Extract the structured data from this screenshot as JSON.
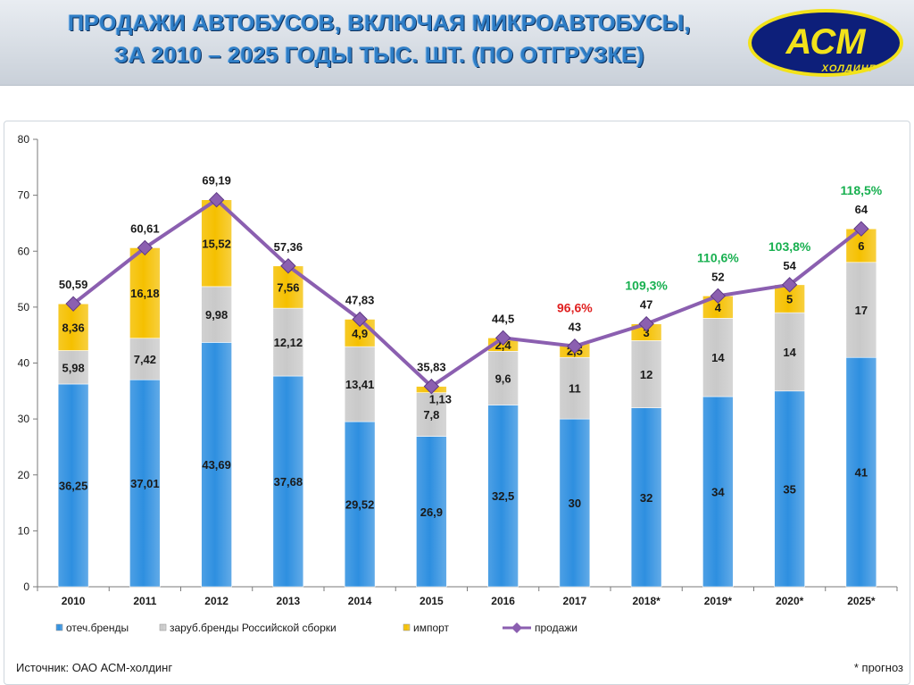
{
  "header": {
    "title_line1": "ПРОДАЖИ АВТОБУСОВ, ВКЛЮЧАЯ МИКРОАВТОБУСЫ,",
    "title_line2": "ЗА 2010 – 2025 ГОДЫ ТЫС. ШТ. (ПО ОТГРУЗКЕ)",
    "logo_text": "АСМ",
    "logo_subtext": "ХОЛДИНГ"
  },
  "footer": {
    "source": "Источник: ОАО АСМ-холдинг",
    "note": "* прогноз"
  },
  "colors": {
    "domestic": "#2e8fe0",
    "foreign": "#c9c9c9",
    "import": "#f5c000",
    "sales_line": "#8b5fb0",
    "pct_red": "#e02020",
    "pct_green": "#18b050",
    "title": "#2f7ec6",
    "logo_bg": "#0d1f7a",
    "logo_text": "#f2e21a"
  },
  "chart_data": {
    "type": "bar",
    "stacked": true,
    "categories": [
      "2010",
      "2011",
      "2012",
      "2013",
      "2014",
      "2015",
      "2016",
      "2017",
      "2018*",
      "2019*",
      "2020*",
      "2025*"
    ],
    "series": [
      {
        "name": "отеч.бренды",
        "values": [
          36.25,
          37.01,
          43.69,
          37.68,
          29.52,
          26.9,
          32.5,
          30,
          32,
          34,
          35,
          41
        ],
        "labels": [
          "36,25",
          "37,01",
          "43,69",
          "37,68",
          "29,52",
          "26,9",
          "32,5",
          "30",
          "32",
          "34",
          "35",
          "41"
        ]
      },
      {
        "name": "заруб.бренды Российской сборки",
        "values": [
          5.98,
          7.42,
          9.98,
          12.12,
          13.41,
          7.8,
          9.6,
          11,
          12,
          14,
          14,
          17
        ],
        "labels": [
          "5,98",
          "7,42",
          "9,98",
          "12,12",
          "13,41",
          "7,8",
          "9,6",
          "11",
          "12",
          "14",
          "14",
          "17"
        ]
      },
      {
        "name": "импорт",
        "values": [
          8.36,
          16.18,
          15.52,
          7.56,
          4.9,
          1.13,
          2.4,
          2.5,
          3,
          4,
          5,
          6
        ],
        "labels": [
          "8,36",
          "16,18",
          "15,52",
          "7,56",
          "4,9",
          "1,13",
          "2,4",
          "2,5",
          "3",
          "4",
          "5",
          "6"
        ]
      }
    ],
    "line": {
      "name": "продажи",
      "values": [
        50.59,
        60.61,
        69.19,
        57.36,
        47.83,
        35.83,
        44.5,
        43,
        47,
        52,
        54,
        64
      ],
      "labels": [
        "50,59",
        "60,61",
        "69,19",
        "57,36",
        "47,83",
        "35,83",
        "44,5",
        "43",
        "47",
        "52",
        "54",
        "64"
      ]
    },
    "percent_annotations": [
      {
        "category": "2017",
        "text": "96,6%",
        "color": "red"
      },
      {
        "category": "2018*",
        "text": "109,3%",
        "color": "green"
      },
      {
        "category": "2019*",
        "text": "110,6%",
        "color": "green"
      },
      {
        "category": "2020*",
        "text": "103,8%",
        "color": "green"
      },
      {
        "category": "2025*",
        "text": "118,5%",
        "color": "green"
      }
    ],
    "ylim": [
      0,
      80
    ],
    "yticks": [
      0,
      10,
      20,
      30,
      40,
      50,
      60,
      70,
      80
    ],
    "grid": false,
    "legend_position": "bottom",
    "title": "",
    "xlabel": "",
    "ylabel": ""
  }
}
